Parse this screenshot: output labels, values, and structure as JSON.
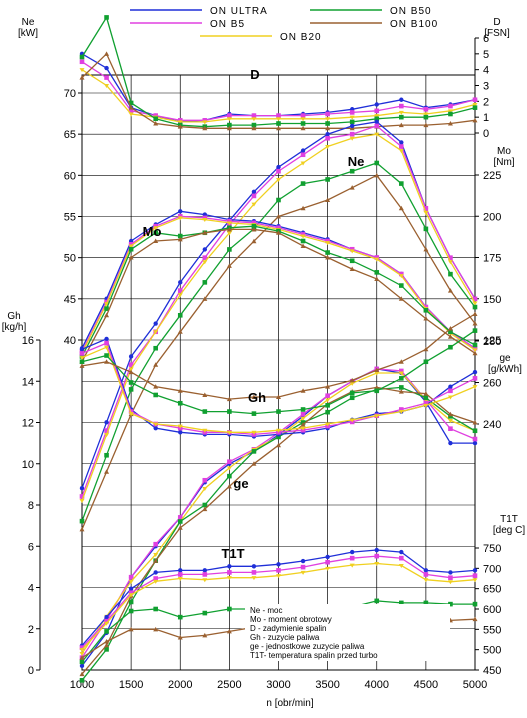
{
  "chart_data": {
    "type": "line",
    "xlabel": "n  [obr/min]",
    "x_ticks": [
      "1000",
      "1500",
      "2000",
      "2500",
      "3000",
      "3500",
      "4000",
      "4500",
      "5000"
    ],
    "x": [
      1000,
      1250,
      1500,
      1750,
      2000,
      2250,
      2500,
      2750,
      3000,
      3250,
      3500,
      3750,
      4000,
      4250,
      4500,
      4750,
      5000
    ],
    "series_names": [
      "ON ULTRA",
      "ON B5",
      "ON B20",
      "ON B50",
      "ON B100"
    ],
    "colors": [
      "#1f2fd8",
      "#e040e0",
      "#f0d020",
      "#10a030",
      "#9a6030"
    ],
    "panels": [
      {
        "key": "D",
        "label": "D",
        "axis_title_top": "D",
        "axis_unit": "[FSN]",
        "ticks": [
          "0",
          "1",
          "2",
          "3",
          "4",
          "5",
          "6"
        ],
        "series": [
          [
            5.0,
            4.1,
            1.6,
            1.1,
            0.7,
            0.8,
            1.2,
            1.1,
            1.1,
            1.2,
            1.3,
            1.5,
            1.8,
            2.1,
            1.6,
            1.8,
            2.1
          ],
          [
            4.5,
            3.5,
            1.4,
            1.1,
            0.8,
            0.8,
            1.1,
            1.1,
            1.1,
            1.1,
            1.2,
            1.3,
            1.4,
            1.7,
            1.5,
            1.7,
            2.1
          ],
          [
            4.0,
            3.0,
            1.2,
            1.0,
            0.7,
            0.7,
            0.9,
            0.9,
            0.9,
            0.9,
            0.9,
            1.0,
            1.1,
            1.3,
            1.2,
            1.4,
            1.8
          ],
          [
            4.8,
            7.3,
            1.9,
            0.9,
            0.5,
            0.4,
            0.5,
            0.5,
            0.6,
            0.6,
            0.6,
            0.7,
            0.9,
            1.0,
            1.0,
            1.2,
            1.6
          ],
          [
            3.5,
            5.0,
            1.6,
            0.6,
            0.4,
            0.3,
            0.3,
            0.3,
            0.3,
            0.3,
            0.3,
            0.3,
            0.4,
            0.5,
            0.5,
            0.6,
            0.8
          ]
        ]
      },
      {
        "key": "Ne",
        "label": "Ne",
        "axis_title_top": "Ne",
        "axis_unit": "[kW]",
        "ticks": [
          "40",
          "45",
          "50",
          "55",
          "60",
          "65",
          "70"
        ],
        "series": [
          [
            22.0,
            30.0,
            38.0,
            42.0,
            47.0,
            51.0,
            54.5,
            58.0,
            61.0,
            63.0,
            65.0,
            66.0,
            66.5,
            64.0,
            56.0,
            50.0,
            45.0
          ],
          [
            21.0,
            29.0,
            37.0,
            41.0,
            46.0,
            50.0,
            54.0,
            57.5,
            60.5,
            62.5,
            64.5,
            65.0,
            66.0,
            63.5,
            56.0,
            50.0,
            45.0
          ],
          [
            20.5,
            28.5,
            36.5,
            41.0,
            45.5,
            49.5,
            53.0,
            56.5,
            59.5,
            61.5,
            63.5,
            64.5,
            65.0,
            63.0,
            55.5,
            49.5,
            44.5
          ],
          [
            18.0,
            26.0,
            34.0,
            39.0,
            43.0,
            47.0,
            51.0,
            53.5,
            57.0,
            59.0,
            59.5,
            60.5,
            61.5,
            59.0,
            53.5,
            48.0,
            44.0
          ],
          [
            17.0,
            24.0,
            31.0,
            37.0,
            41.0,
            45.0,
            49.0,
            52.0,
            55.0,
            56.0,
            57.0,
            58.5,
            60.0,
            56.0,
            51.0,
            46.0,
            42.0
          ]
        ]
      },
      {
        "key": "Mo",
        "label": "Mo",
        "axis_title_top": "Mo",
        "axis_unit": "[Nm]",
        "ticks": [
          "125",
          "150",
          "175",
          "200",
          "225"
        ],
        "series": [
          [
            120,
            150,
            185,
            195,
            203,
            201,
            198,
            197,
            194,
            190,
            186,
            180,
            175,
            165,
            145,
            130,
            120
          ],
          [
            118,
            148,
            183,
            194,
            200,
            199,
            197,
            196,
            193,
            189,
            185,
            180,
            175,
            165,
            145,
            130,
            120
          ],
          [
            117,
            147,
            182,
            193,
            199,
            198,
            196,
            195,
            192,
            188,
            184,
            179,
            174,
            164,
            144,
            129,
            119
          ],
          [
            115,
            144,
            180,
            190,
            188,
            190,
            193,
            194,
            191,
            185,
            178,
            173,
            166,
            158,
            143,
            130,
            122
          ],
          [
            112,
            140,
            175,
            185,
            186,
            190,
            192,
            192,
            190,
            182,
            175,
            168,
            162,
            150,
            138,
            127,
            117
          ]
        ]
      },
      {
        "key": "Gh",
        "label": "Gh",
        "axis_title_top": "Gh",
        "axis_unit": "[kg/h]",
        "ticks": [
          "0",
          "2",
          "4",
          "6",
          "8",
          "10",
          "12",
          "14",
          "16"
        ],
        "series": [
          [
            0.2,
            1.8,
            4.5,
            6.0,
            7.4,
            9.1,
            10.0,
            10.6,
            11.4,
            12.3,
            13.3,
            14.0,
            14.6,
            14.4,
            13.0,
            11.0,
            11.0
          ],
          [
            0.6,
            2.4,
            4.5,
            6.1,
            7.4,
            9.2,
            10.1,
            10.7,
            11.5,
            12.4,
            13.3,
            14.0,
            14.6,
            14.5,
            13.1,
            11.7,
            11.2
          ],
          [
            0.8,
            2.6,
            4.3,
            5.6,
            7.2,
            8.8,
            9.8,
            10.7,
            11.3,
            12.2,
            13.1,
            13.9,
            14.4,
            14.4,
            13.1,
            12.1,
            11.6
          ],
          [
            -0.5,
            1.0,
            3.3,
            5.3,
            7.2,
            8.0,
            9.4,
            10.6,
            11.3,
            12.0,
            12.5,
            13.2,
            13.6,
            13.7,
            13.2,
            12.3,
            11.6
          ],
          [
            -0.2,
            1.2,
            3.6,
            5.3,
            6.9,
            7.8,
            8.9,
            10.0,
            10.9,
            11.9,
            12.9,
            13.5,
            13.7,
            13.5,
            13.4,
            12.4,
            12.0
          ]
        ]
      },
      {
        "key": "ge",
        "label": "ge",
        "axis_title_top": "ge",
        "axis_unit": "[g/kWh]",
        "ticks": [
          "240",
          "260",
          "280"
        ],
        "series": [
          [
            276,
            281,
            247,
            238,
            236,
            235,
            235,
            234,
            235,
            236,
            238,
            242,
            245,
            246,
            249,
            258,
            265
          ],
          [
            274,
            279,
            246,
            240,
            238,
            236,
            236,
            235,
            236,
            237,
            239,
            241,
            244,
            247,
            250,
            256,
            262
          ],
          [
            272,
            277,
            245,
            240,
            239,
            237,
            236,
            236,
            237,
            238,
            240,
            242,
            244,
            246,
            249,
            253,
            258
          ],
          [
            270,
            273,
            260,
            254,
            250,
            246,
            246,
            245,
            246,
            247,
            249,
            255,
            256,
            262,
            270,
            277,
            285
          ],
          [
            268,
            270,
            265,
            258,
            256,
            254,
            252,
            253,
            253,
            256,
            258,
            261,
            266,
            270,
            276,
            286,
            293
          ]
        ]
      },
      {
        "key": "T1T",
        "label": "T1T",
        "axis_title_bottom": "T1T",
        "axis_unit": "[deg C]",
        "ticks": [
          "450",
          "500",
          "550",
          "600",
          "650",
          "700",
          "750"
        ],
        "series": [
          [
            510,
            580,
            650,
            690,
            695,
            695,
            705,
            705,
            710,
            718,
            728,
            740,
            745,
            740,
            695,
            690,
            695
          ],
          [
            505,
            570,
            640,
            675,
            685,
            685,
            690,
            690,
            695,
            703,
            715,
            725,
            730,
            725,
            685,
            677,
            682
          ],
          [
            500,
            565,
            635,
            668,
            675,
            672,
            677,
            677,
            682,
            690,
            700,
            708,
            712,
            707,
            672,
            667,
            672
          ],
          [
            470,
            545,
            595,
            600,
            580,
            590,
            600,
            600,
            600,
            600,
            600,
            605,
            620,
            615,
            615,
            612,
            612
          ],
          [
            480,
            520,
            550,
            550,
            530,
            535,
            545,
            555,
            555,
            560,
            565,
            570,
            580,
            575,
            578,
            572,
            575
          ]
        ]
      }
    ],
    "legend": {
      "left": [
        "Ne - moc",
        "Mo - moment obrotowy",
        "D - zadymienie spalin",
        "Gh - zuzycie paliwa",
        "ge - jednostkowe zuzycie paliwa",
        "T1T- temperatura spalin przed turbo"
      ]
    }
  }
}
